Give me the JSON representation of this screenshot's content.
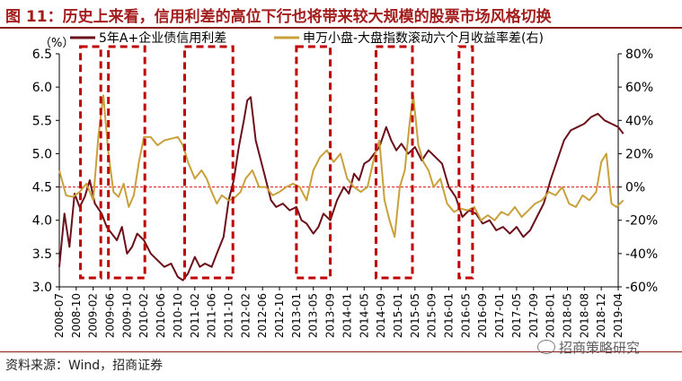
{
  "title": "图 11：历史上来看，信用利差的高位下行也将带来较大规模的股票市场风格切换",
  "source": "资料来源：Wind，招商证券",
  "watermark": "招商策略研究",
  "chart_data": {
    "type": "line",
    "left_unit": "（%）",
    "ylim_left": [
      3.0,
      6.5
    ],
    "left_ticks": [
      "6.5",
      "6.0",
      "5.5",
      "5.0",
      "4.5",
      "4.0",
      "3.5",
      "3.0"
    ],
    "ylim_right": [
      -60,
      80
    ],
    "right_ticks": [
      "80%",
      "60%",
      "40%",
      "20%",
      "0%",
      "-20%",
      "-40%",
      "-60%"
    ],
    "x_ticks": [
      "2008-07",
      "2008-10",
      "2009-02",
      "2009-06",
      "2009-10",
      "2010-02",
      "2010-06",
      "2010-10",
      "2011-02",
      "2011-06",
      "2011-10",
      "2012-02",
      "2012-06",
      "2012-10",
      "2013-01",
      "2013-05",
      "2013-09",
      "2014-01",
      "2014-05",
      "2014-09",
      "2015-01",
      "2015-05",
      "2015-09",
      "2016-01",
      "2016-05",
      "2016-09",
      "2017-01",
      "2017-05",
      "2017-09",
      "2018-01",
      "2018-05",
      "2018-08",
      "2018-12",
      "2019-04"
    ],
    "series": [
      {
        "name": "5年A+企业债信用利差",
        "axis": "left",
        "color": "#6b0f1a",
        "points": [
          [
            0,
            3.3
          ],
          [
            0.3,
            4.1
          ],
          [
            0.6,
            3.6
          ],
          [
            0.9,
            4.4
          ],
          [
            1.2,
            4.2
          ],
          [
            1.5,
            4.35
          ],
          [
            1.8,
            4.6
          ],
          [
            2.1,
            4.25
          ],
          [
            2.5,
            4.1
          ],
          [
            2.8,
            3.9
          ],
          [
            3.1,
            3.8
          ],
          [
            3.4,
            3.7
          ],
          [
            3.7,
            3.9
          ],
          [
            4.0,
            3.5
          ],
          [
            4.3,
            3.6
          ],
          [
            4.6,
            3.8
          ],
          [
            5.0,
            3.7
          ],
          [
            5.4,
            3.5
          ],
          [
            5.8,
            3.4
          ],
          [
            6.2,
            3.3
          ],
          [
            6.6,
            3.35
          ],
          [
            7.0,
            3.15
          ],
          [
            7.3,
            3.1
          ],
          [
            7.6,
            3.2
          ],
          [
            8.0,
            3.45
          ],
          [
            8.3,
            3.3
          ],
          [
            8.6,
            3.35
          ],
          [
            9.0,
            3.3
          ],
          [
            9.3,
            3.5
          ],
          [
            9.7,
            3.75
          ],
          [
            10.0,
            4.3
          ],
          [
            10.3,
            4.6
          ],
          [
            10.6,
            5.1
          ],
          [
            10.9,
            5.5
          ],
          [
            11.1,
            5.8
          ],
          [
            11.3,
            5.85
          ],
          [
            11.6,
            5.2
          ],
          [
            11.9,
            4.9
          ],
          [
            12.2,
            4.6
          ],
          [
            12.5,
            4.3
          ],
          [
            12.8,
            4.2
          ],
          [
            13.2,
            4.25
          ],
          [
            13.6,
            4.15
          ],
          [
            14.0,
            4.2
          ],
          [
            14.3,
            4.0
          ],
          [
            14.6,
            3.95
          ],
          [
            15.0,
            3.8
          ],
          [
            15.3,
            3.9
          ],
          [
            15.6,
            4.1
          ],
          [
            16.0,
            4.0
          ],
          [
            16.4,
            4.3
          ],
          [
            16.8,
            4.5
          ],
          [
            17.1,
            4.4
          ],
          [
            17.4,
            4.7
          ],
          [
            17.7,
            4.6
          ],
          [
            18.0,
            4.85
          ],
          [
            18.3,
            4.9
          ],
          [
            18.6,
            5.0
          ],
          [
            18.9,
            5.1
          ],
          [
            19.3,
            5.4
          ],
          [
            19.6,
            5.2
          ],
          [
            19.9,
            5.05
          ],
          [
            20.2,
            5.15
          ],
          [
            20.6,
            5.0
          ],
          [
            21.0,
            5.1
          ],
          [
            21.4,
            4.9
          ],
          [
            21.8,
            5.05
          ],
          [
            22.2,
            4.95
          ],
          [
            22.6,
            4.85
          ],
          [
            23.0,
            4.5
          ],
          [
            23.4,
            4.35
          ],
          [
            23.8,
            4.05
          ],
          [
            24.2,
            4.15
          ],
          [
            24.6,
            4.1
          ],
          [
            25.0,
            3.95
          ],
          [
            25.4,
            4.0
          ],
          [
            25.8,
            3.85
          ],
          [
            26.2,
            3.9
          ],
          [
            26.6,
            3.8
          ],
          [
            27.0,
            3.9
          ],
          [
            27.4,
            3.75
          ],
          [
            27.8,
            3.85
          ],
          [
            28.2,
            4.05
          ],
          [
            28.6,
            4.25
          ],
          [
            29.0,
            4.6
          ],
          [
            29.4,
            4.9
          ],
          [
            29.8,
            5.2
          ],
          [
            30.2,
            5.35
          ],
          [
            30.6,
            5.4
          ],
          [
            31.0,
            5.45
          ],
          [
            31.4,
            5.55
          ],
          [
            31.8,
            5.6
          ],
          [
            32.2,
            5.5
          ],
          [
            32.6,
            5.45
          ],
          [
            33.0,
            5.4
          ],
          [
            33.3,
            5.3
          ]
        ]
      },
      {
        "name": "申万小盘-大盘指数滚动六个月收益率差(右)",
        "axis": "right",
        "color": "#c9a13b",
        "points": [
          [
            0,
            10
          ],
          [
            0.4,
            -5
          ],
          [
            0.8,
            -6
          ],
          [
            1.2,
            -3
          ],
          [
            1.6,
            2
          ],
          [
            2.0,
            -8
          ],
          [
            2.3,
            30
          ],
          [
            2.6,
            55
          ],
          [
            2.9,
            20
          ],
          [
            3.2,
            -3
          ],
          [
            3.5,
            -6
          ],
          [
            3.8,
            2
          ],
          [
            4.1,
            -12
          ],
          [
            4.4,
            -5
          ],
          [
            4.7,
            15
          ],
          [
            5.0,
            30
          ],
          [
            5.4,
            30
          ],
          [
            5.8,
            25
          ],
          [
            6.2,
            28
          ],
          [
            6.6,
            29
          ],
          [
            7.0,
            30
          ],
          [
            7.3,
            25
          ],
          [
            7.6,
            15
          ],
          [
            8.0,
            5
          ],
          [
            8.4,
            10
          ],
          [
            8.7,
            5
          ],
          [
            9.0,
            -3
          ],
          [
            9.3,
            -10
          ],
          [
            9.6,
            -5
          ],
          [
            10.0,
            -8
          ],
          [
            10.3,
            -7
          ],
          [
            10.7,
            -3
          ],
          [
            11.0,
            5
          ],
          [
            11.4,
            10
          ],
          [
            11.8,
            0
          ],
          [
            12.2,
            0
          ],
          [
            12.6,
            -5
          ],
          [
            13.0,
            -3
          ],
          [
            13.4,
            0
          ],
          [
            13.8,
            2
          ],
          [
            14.2,
            0
          ],
          [
            14.6,
            -8
          ],
          [
            15.0,
            10
          ],
          [
            15.4,
            18
          ],
          [
            15.8,
            22
          ],
          [
            16.2,
            15
          ],
          [
            16.6,
            20
          ],
          [
            17.0,
            5
          ],
          [
            17.4,
            0
          ],
          [
            17.8,
            -3
          ],
          [
            18.2,
            0
          ],
          [
            18.6,
            18
          ],
          [
            18.9,
            28
          ],
          [
            19.2,
            -8
          ],
          [
            19.5,
            -20
          ],
          [
            19.8,
            -30
          ],
          [
            20.1,
            0
          ],
          [
            20.4,
            10
          ],
          [
            20.7,
            40
          ],
          [
            20.9,
            55
          ],
          [
            21.2,
            25
          ],
          [
            21.5,
            15
          ],
          [
            21.8,
            10
          ],
          [
            22.1,
            0
          ],
          [
            22.5,
            5
          ],
          [
            22.9,
            -10
          ],
          [
            23.3,
            -15
          ],
          [
            23.7,
            -13
          ],
          [
            24.1,
            -14
          ],
          [
            24.5,
            -12
          ],
          [
            24.9,
            -20
          ],
          [
            25.3,
            -17
          ],
          [
            25.7,
            -20
          ],
          [
            26.1,
            -15
          ],
          [
            26.5,
            -17
          ],
          [
            26.9,
            -12
          ],
          [
            27.3,
            -18
          ],
          [
            27.7,
            -14
          ],
          [
            28.1,
            -10
          ],
          [
            28.5,
            -8
          ],
          [
            28.9,
            -3
          ],
          [
            29.3,
            -5
          ],
          [
            29.7,
            0
          ],
          [
            30.1,
            -10
          ],
          [
            30.5,
            -12
          ],
          [
            30.9,
            -5
          ],
          [
            31.3,
            -8
          ],
          [
            31.7,
            -3
          ],
          [
            32.0,
            15
          ],
          [
            32.3,
            20
          ],
          [
            32.6,
            -10
          ],
          [
            32.9,
            -12
          ],
          [
            33.3,
            -8
          ]
        ]
      }
    ],
    "reference_line": {
      "axis": "right",
      "value": 0
    },
    "highlight_windows": [
      [
        1.25,
        2.45
      ],
      [
        2.9,
        5.05
      ],
      [
        7.4,
        10.25
      ],
      [
        14.0,
        16.0
      ],
      [
        18.7,
        20.85
      ],
      [
        23.6,
        24.4
      ]
    ]
  }
}
